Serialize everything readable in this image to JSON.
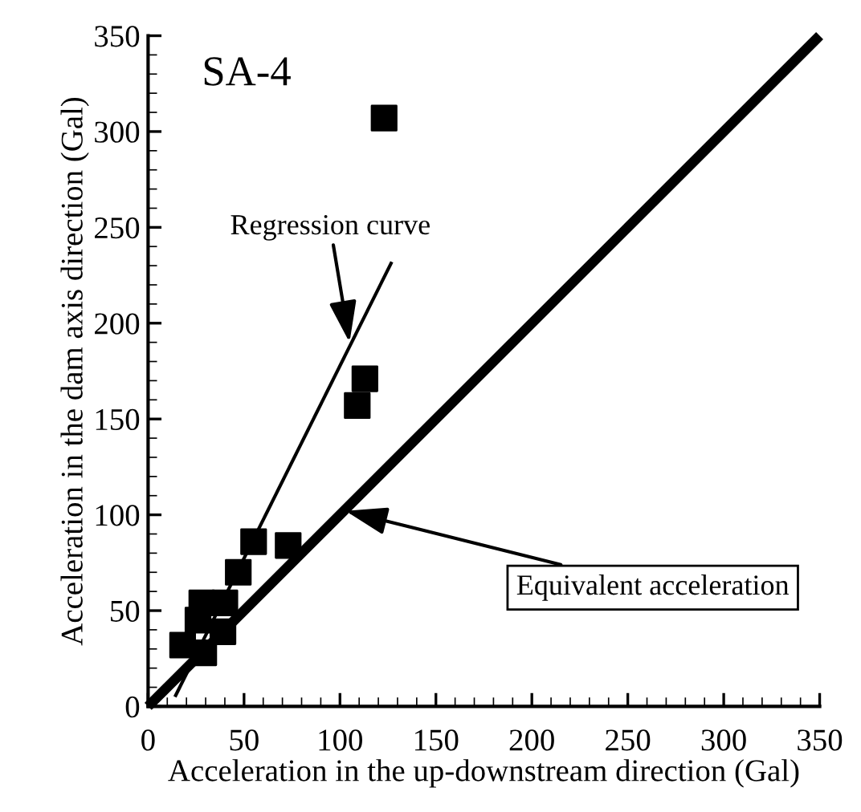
{
  "chart_data": {
    "type": "scatter",
    "title": "SA-4",
    "xlabel": "Acceleration in the up-downstream direction (Gal)",
    "ylabel": "Acceleration in the dam axis direction (Gal)",
    "xlim": [
      0,
      350
    ],
    "ylim": [
      0,
      350
    ],
    "xticks": [
      0,
      50,
      100,
      150,
      200,
      250,
      300,
      350
    ],
    "yticks": [
      0,
      50,
      100,
      150,
      200,
      250,
      300,
      350
    ],
    "grid": false,
    "legend": false,
    "series": [
      {
        "color": "#000000",
        "marker": "square",
        "x": [
          18,
          29,
          26,
          28,
          39,
          40,
          47,
          55,
          73,
          109,
          113,
          123
        ],
        "values": [
          32,
          28,
          45,
          54,
          39,
          54,
          70,
          86,
          84,
          157,
          171,
          307
        ]
      },
      {
        "type": "line",
        "color": "#000000",
        "line_style": "solid",
        "x": [
          14,
          127
        ],
        "values": [
          5,
          232
        ]
      },
      {
        "type": "line",
        "color": "#000000",
        "line_style": "solid",
        "x": [
          0,
          350
        ],
        "values": [
          0,
          350
        ]
      }
    ],
    "annotations": [
      {
        "text": "Regression curve",
        "x": 105,
        "y": 190
      },
      {
        "text": "Equivalent acceleration",
        "x": 103,
        "y": 102
      }
    ]
  }
}
